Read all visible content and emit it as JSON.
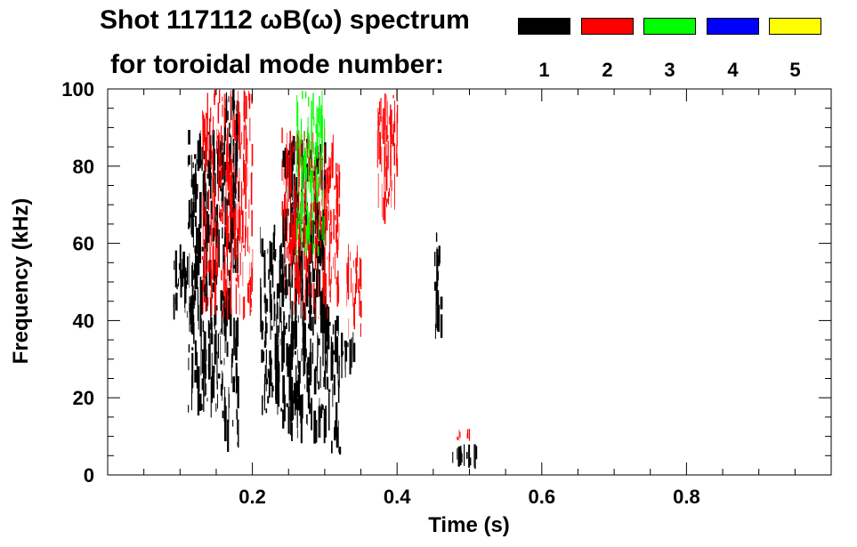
{
  "chart_data": {
    "type": "heatmap",
    "title": "Shot 117112 ωB(ω) spectrum",
    "subtitle": "for toroidal mode number:",
    "xlabel": "Time (s)",
    "ylabel": "Frequency (kHz)",
    "xlim": [
      0.0,
      1.0
    ],
    "ylim": [
      0,
      100
    ],
    "x_ticks": [
      "0.2",
      "0.4",
      "0.6",
      "0.8"
    ],
    "x_tick_values": [
      0.2,
      0.4,
      0.6,
      0.8
    ],
    "y_ticks": [
      "0",
      "20",
      "40",
      "60",
      "80",
      "100"
    ],
    "y_tick_values": [
      0,
      20,
      40,
      60,
      80,
      100
    ],
    "grid": false,
    "legend_placement": "top-right",
    "legend": [
      {
        "label": "1",
        "color": "#000000"
      },
      {
        "label": "2",
        "color": "#ff0000"
      },
      {
        "label": "3",
        "color": "#00ff00"
      },
      {
        "label": "4",
        "color": "#0000ff"
      },
      {
        "label": "5",
        "color": "#ffff00"
      }
    ],
    "series": [
      {
        "mode": "1",
        "color": "#000000",
        "regions": [
          {
            "t": [
              0.09,
              0.11
            ],
            "f": [
              40,
              60
            ]
          },
          {
            "t": [
              0.11,
              0.16
            ],
            "f": [
              14,
              90
            ]
          },
          {
            "t": [
              0.16,
              0.18
            ],
            "f": [
              5,
              100
            ]
          },
          {
            "t": [
              0.21,
              0.24
            ],
            "f": [
              15,
              65
            ]
          },
          {
            "t": [
              0.24,
              0.3
            ],
            "f": [
              8,
              88
            ]
          },
          {
            "t": [
              0.3,
              0.32
            ],
            "f": [
              5,
              45
            ]
          },
          {
            "t": [
              0.32,
              0.34
            ],
            "f": [
              25,
              37
            ]
          },
          {
            "t": [
              0.45,
              0.46
            ],
            "f": [
              35,
              65
            ]
          },
          {
            "t": [
              0.47,
              0.51
            ],
            "f": [
              2,
              8
            ]
          }
        ]
      },
      {
        "mode": "2",
        "color": "#ff0000",
        "regions": [
          {
            "t": [
              0.13,
              0.2
            ],
            "f": [
              40,
              100
            ]
          },
          {
            "t": [
              0.24,
              0.32
            ],
            "f": [
              40,
              90
            ]
          },
          {
            "t": [
              0.33,
              0.35
            ],
            "f": [
              35,
              60
            ]
          },
          {
            "t": [
              0.37,
              0.4
            ],
            "f": [
              65,
              100
            ]
          },
          {
            "t": [
              0.48,
              0.5
            ],
            "f": [
              9,
              12
            ]
          }
        ]
      },
      {
        "mode": "3",
        "color": "#00ff00",
        "regions": [
          {
            "t": [
              0.26,
              0.3
            ],
            "f": [
              55,
              100
            ]
          }
        ]
      },
      {
        "mode": "4",
        "color": "#0000ff",
        "regions": []
      },
      {
        "mode": "5",
        "color": "#ffff00",
        "regions": []
      }
    ]
  }
}
